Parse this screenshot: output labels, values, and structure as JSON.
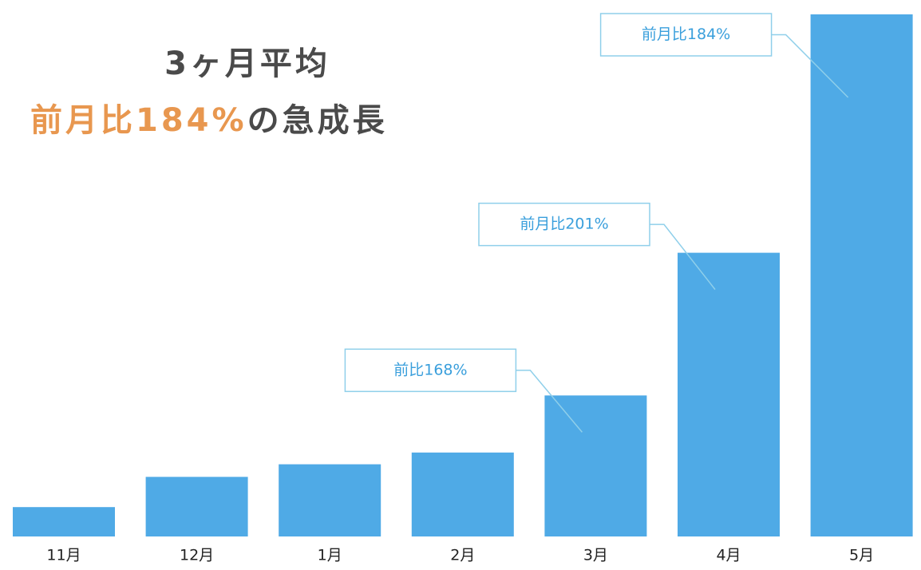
{
  "chart_data": {
    "type": "bar",
    "title": "3ヶ月平均",
    "subtitle_parts": [
      {
        "text": "前月比184%",
        "color": "#e8974f"
      },
      {
        "text": "の急成長",
        "color": "#4a4a4a"
      }
    ],
    "categories": [
      "11月",
      "12月",
      "1月",
      "2月",
      "3月",
      "4月",
      "5月"
    ],
    "values": [
      35,
      71,
      86,
      100,
      168,
      338,
      622
    ],
    "color": "#4faae6",
    "annotations": [
      {
        "text": "前比168%",
        "category": "3月"
      },
      {
        "text": "前月比201%",
        "category": "4月"
      },
      {
        "text": "前月比184%",
        "category": "5月"
      }
    ]
  }
}
